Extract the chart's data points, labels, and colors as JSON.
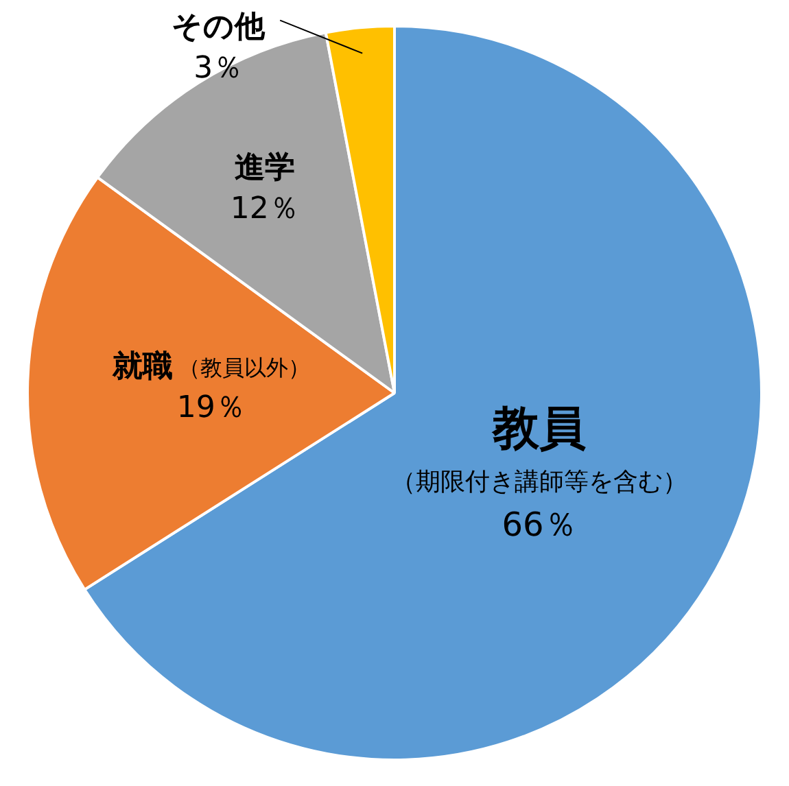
{
  "chart_data": {
    "type": "pie",
    "categories": [
      "教員（期限付き講師等を含む）",
      "就職（教員以外）",
      "進学",
      "その他"
    ],
    "values": [
      66,
      19,
      12,
      3
    ],
    "value_labels": [
      "66％",
      "19％",
      "12％",
      "3％"
    ],
    "colors": [
      "#5b9bd5",
      "#ed7d31",
      "#a5a5a5",
      "#ffc000"
    ],
    "legend": false
  }
}
